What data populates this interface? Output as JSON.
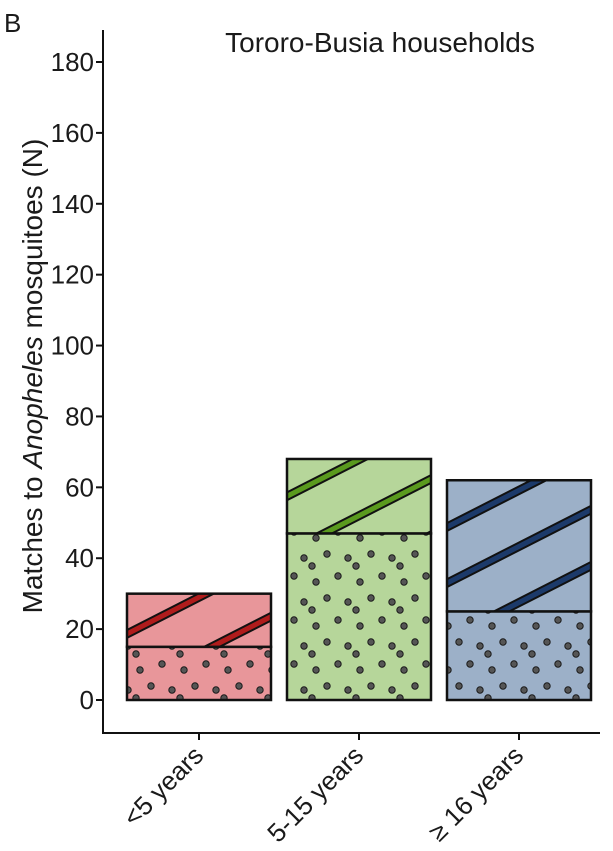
{
  "panel_label": "B",
  "chart_data": {
    "type": "bar",
    "stacked": true,
    "title": "Tororo-Busia households",
    "ylabel_prefix": "Matches to ",
    "ylabel_italic": "Anopheles",
    "ylabel_suffix": " mosquitoes (N)",
    "ylim": [
      0,
      180
    ],
    "yticks": [
      0,
      20,
      40,
      60,
      80,
      100,
      120,
      140,
      160,
      180
    ],
    "categories": [
      "<5 years",
      "5-15 years",
      "≥ 16 years"
    ],
    "colors": {
      "fill": [
        "#e8969a",
        "#b6d69a",
        "#9cb0c8"
      ],
      "stripe": [
        "#b01c1c",
        "#5a9a1e",
        "#1c3a6a"
      ]
    },
    "series": [
      {
        "pattern": "dots",
        "values": [
          15,
          47,
          25
        ]
      },
      {
        "pattern": "stripes",
        "values": [
          15,
          21,
          37
        ]
      }
    ],
    "totals": [
      30,
      68,
      62
    ],
    "grid": false,
    "legend": "none"
  }
}
